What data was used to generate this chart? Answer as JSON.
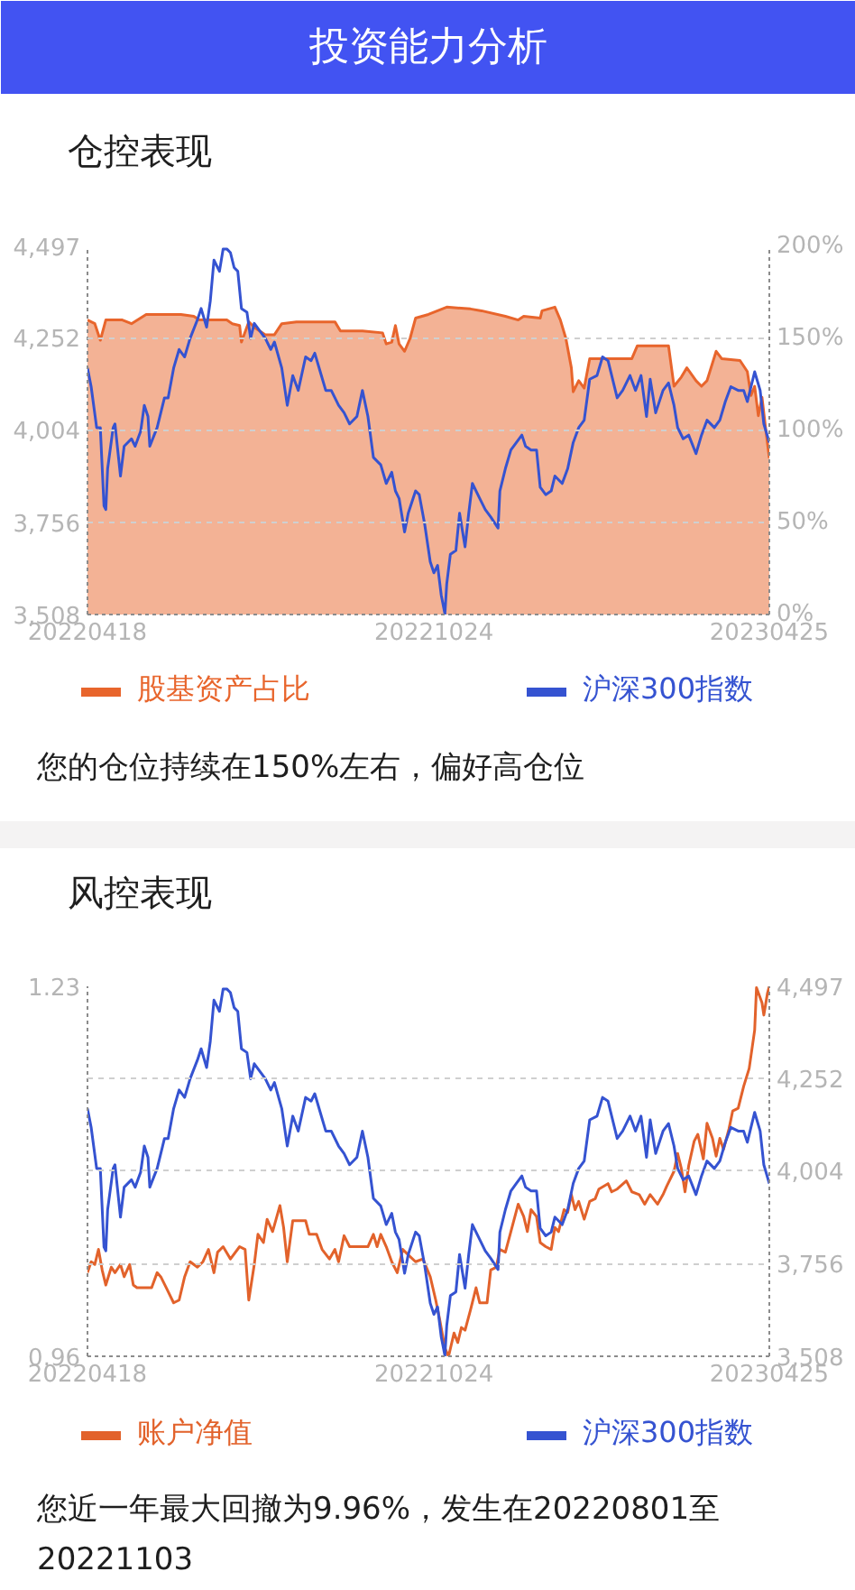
{
  "chart_data": [
    {
      "type": "other",
      "title": "投资能力分析"
    },
    {
      "type": "line",
      "title": "仓控表现",
      "annotations": [
        "您的仓位持续在150%左右，偏好高仓位"
      ],
      "xlim": [
        "2022-04-18",
        "2023-04-25"
      ],
      "xticks": [
        {
          "value": "2022-04-18",
          "label": "20220418"
        },
        {
          "value": "2022-10-24",
          "label": "20221024"
        },
        {
          "value": "2023-04-25",
          "label": "20230425"
        }
      ],
      "ylim": [
        3508,
        4497
      ],
      "yticks": [
        {
          "value": 3508,
          "label": "3,508"
        },
        {
          "value": 3756,
          "label": "3,756"
        },
        {
          "value": 4004,
          "label": "4,004"
        },
        {
          "value": 4252,
          "label": "4,252"
        },
        {
          "value": 4497,
          "label": "4,497"
        }
      ],
      "y2lim": [
        0,
        200
      ],
      "y2ticks": [
        {
          "value": 0,
          "label": "0%"
        },
        {
          "value": 50,
          "label": "50%"
        },
        {
          "value": 100,
          "label": "100%"
        },
        {
          "value": 150,
          "label": "150%"
        },
        {
          "value": 200,
          "label": "200%"
        }
      ],
      "grid": "y",
      "legend": "bottom",
      "series": [
        {
          "name": "股基资产占比",
          "type": "area",
          "axis": "y2",
          "color": "#e8652c",
          "x": [
            "2022-04-18",
            "2022-04-22",
            "2022-04-25",
            "2022-04-28",
            "2022-05-07",
            "2022-05-12",
            "2022-05-20",
            "2022-05-30",
            "2022-06-08",
            "2022-06-15",
            "2022-06-18",
            "2022-06-26",
            "2022-07-03",
            "2022-07-06",
            "2022-07-10",
            "2022-07-11",
            "2022-07-15",
            "2022-07-18",
            "2022-07-24",
            "2022-07-29",
            "2022-08-02",
            "2022-08-10",
            "2022-08-31",
            "2022-09-03",
            "2022-09-15",
            "2022-09-26",
            "2022-09-28",
            "2022-10-01",
            "2022-10-03",
            "2022-10-05",
            "2022-10-08",
            "2022-10-11",
            "2022-10-14",
            "2022-10-21",
            "2022-10-31",
            "2022-11-13",
            "2022-11-19",
            "2022-12-02",
            "2022-12-09",
            "2022-12-12",
            "2022-12-21",
            "2022-12-22",
            "2022-12-29",
            "2023-01-01",
            "2023-01-04",
            "2023-01-07",
            "2023-01-08",
            "2023-01-11",
            "2023-01-14",
            "2023-01-17",
            "2023-02-09",
            "2023-02-12",
            "2023-03-01",
            "2023-03-04",
            "2023-03-08",
            "2023-03-11",
            "2023-03-16",
            "2023-03-19",
            "2023-03-22",
            "2023-03-27",
            "2023-03-30",
            "2023-04-09",
            "2023-04-13",
            "2023-04-15",
            "2023-04-17",
            "2023-04-19",
            "2023-04-21",
            "2023-04-23",
            "2023-04-25"
          ],
          "values": [
            160,
            158,
            149,
            160,
            160,
            158,
            163,
            163,
            163,
            162,
            160,
            160,
            160,
            158,
            157,
            148,
            159,
            156,
            152,
            152,
            158,
            159,
            159,
            154,
            154,
            153,
            147,
            148,
            157,
            147,
            143,
            150,
            161,
            163,
            167,
            166,
            165,
            162,
            160,
            162,
            161,
            165,
            167,
            160,
            150,
            134,
            121,
            127,
            123,
            139,
            139,
            146,
            146,
            124,
            129,
            134,
            127,
            124,
            127,
            143,
            139,
            138,
            132,
            119,
            124,
            108,
            118,
            101,
            85
          ]
        },
        {
          "name": "沪深300指数",
          "color": "#3553d1",
          "x": [
            "2022-04-18",
            "2022-04-20",
            "2022-04-23",
            "2022-04-25",
            "2022-04-27",
            "2022-04-28",
            "2022-04-29",
            "2022-05-02",
            "2022-05-03",
            "2022-05-06",
            "2022-05-08",
            "2022-05-12",
            "2022-05-14",
            "2022-05-17",
            "2022-05-19",
            "2022-05-21",
            "2022-05-22",
            "2022-05-26",
            "2022-05-30",
            "2022-06-01",
            "2022-06-04",
            "2022-06-07",
            "2022-06-10",
            "2022-06-13",
            "2022-06-17",
            "2022-06-19",
            "2022-06-22",
            "2022-06-24",
            "2022-06-26",
            "2022-06-29",
            "2022-07-01",
            "2022-07-03",
            "2022-07-05",
            "2022-07-07",
            "2022-07-09",
            "2022-07-11",
            "2022-07-14",
            "2022-07-16",
            "2022-07-18",
            "2022-07-21",
            "2022-07-24",
            "2022-07-27",
            "2022-07-29",
            "2022-08-02",
            "2022-08-05",
            "2022-08-08",
            "2022-08-11",
            "2022-08-15",
            "2022-08-18",
            "2022-08-20",
            "2022-08-23",
            "2022-08-26",
            "2022-08-29",
            "2022-09-02",
            "2022-09-05",
            "2022-09-08",
            "2022-09-12",
            "2022-09-15",
            "2022-09-18",
            "2022-09-21",
            "2022-09-25",
            "2022-09-28",
            "2022-10-01",
            "2022-10-03",
            "2022-10-05",
            "2022-10-08",
            "2022-10-10",
            "2022-10-14",
            "2022-10-16",
            "2022-10-19",
            "2022-10-22",
            "2022-10-24",
            "2022-10-26",
            "2022-10-28",
            "2022-10-30",
            "2022-10-31",
            "2022-11-02",
            "2022-11-05",
            "2022-11-07",
            "2022-11-10",
            "2022-11-12",
            "2022-11-14",
            "2022-11-18",
            "2022-11-21",
            "2022-11-24",
            "2022-11-28",
            "2022-11-29",
            "2022-12-02",
            "2022-12-05",
            "2022-12-08",
            "2022-12-11",
            "2022-12-13",
            "2022-12-16",
            "2022-12-19",
            "2022-12-21",
            "2022-12-24",
            "2022-12-27",
            "2022-12-29",
            "2023-01-02",
            "2023-01-05",
            "2023-01-08",
            "2023-01-11",
            "2023-01-14",
            "2023-01-17",
            "2023-01-21",
            "2023-01-24",
            "2023-01-27",
            "2023-01-29",
            "2023-02-01",
            "2023-02-04",
            "2023-02-08",
            "2023-02-11",
            "2023-02-14",
            "2023-02-17",
            "2023-02-19",
            "2023-02-22",
            "2023-02-26",
            "2023-03-01",
            "2023-03-04",
            "2023-03-06",
            "2023-03-09",
            "2023-03-12",
            "2023-03-16",
            "2023-03-19",
            "2023-03-22",
            "2023-03-26",
            "2023-03-29",
            "2023-04-01",
            "2023-04-04",
            "2023-04-08",
            "2023-04-11",
            "2023-04-13",
            "2023-04-17",
            "2023-04-20",
            "2023-04-22",
            "2023-04-25"
          ],
          "values": [
            4170,
            4120,
            4010,
            4010,
            3800,
            3790,
            3900,
            4010,
            4020,
            3880,
            3960,
            3980,
            3960,
            4000,
            4070,
            4040,
            3960,
            4010,
            4090,
            4090,
            4170,
            4220,
            4200,
            4250,
            4300,
            4330,
            4280,
            4350,
            4460,
            4430,
            4490,
            4490,
            4480,
            4440,
            4430,
            4330,
            4320,
            4250,
            4290,
            4270,
            4250,
            4220,
            4240,
            4170,
            4070,
            4150,
            4110,
            4200,
            4190,
            4210,
            4160,
            4110,
            4110,
            4070,
            4050,
            4020,
            4040,
            4110,
            4040,
            3930,
            3910,
            3860,
            3890,
            3840,
            3820,
            3730,
            3780,
            3840,
            3830,
            3750,
            3650,
            3620,
            3640,
            3560,
            3510,
            3590,
            3670,
            3680,
            3780,
            3690,
            3780,
            3860,
            3820,
            3790,
            3770,
            3740,
            3840,
            3900,
            3950,
            3970,
            3990,
            3960,
            3950,
            3950,
            3850,
            3830,
            3840,
            3880,
            3860,
            3900,
            3970,
            4010,
            4030,
            4140,
            4150,
            4200,
            4190,
            4150,
            4090,
            4110,
            4150,
            4110,
            4150,
            4040,
            4140,
            4050,
            4110,
            4130,
            4070,
            4010,
            3980,
            3990,
            3940,
            3990,
            4030,
            4010,
            4030,
            4080,
            4120,
            4110,
            4110,
            4080,
            4160,
            4110,
            4020,
            3970
          ]
        }
      ]
    },
    {
      "type": "line",
      "title": "风控表现",
      "annotations": [
        "您近一年最大回撤为9.96%，发生在20220801至20221103"
      ],
      "xlim": [
        "2022-04-18",
        "2023-04-25"
      ],
      "xticks": [
        {
          "value": "2022-04-18",
          "label": "20220418"
        },
        {
          "value": "2022-10-24",
          "label": "20221024"
        },
        {
          "value": "2023-04-25",
          "label": "20230425"
        }
      ],
      "ylim": [
        0.96,
        1.23
      ],
      "yticks": [
        0.96,
        1.23
      ],
      "y2lim": [
        3508,
        4497
      ],
      "y2ticks": [
        {
          "value": 3508,
          "label": "3,508"
        },
        {
          "value": 3756,
          "label": "3,756"
        },
        {
          "value": 4004,
          "label": "4,004"
        },
        {
          "value": 4252,
          "label": "4,252"
        },
        {
          "value": 4497,
          "label": "4,497"
        }
      ],
      "grid": "y",
      "legend": "bottom",
      "series": [
        {
          "name": "账户净值",
          "color": "#e2622b",
          "x": [
            "2022-04-18",
            "2022-04-20",
            "2022-04-22",
            "2022-04-24",
            "2022-04-26",
            "2022-04-28",
            "2022-05-01",
            "2022-05-03",
            "2022-05-06",
            "2022-05-08",
            "2022-05-11",
            "2022-05-13",
            "2022-05-15",
            "2022-05-23",
            "2022-05-26",
            "2022-05-28",
            "2022-05-31",
            "2022-06-04",
            "2022-06-07",
            "2022-06-10",
            "2022-06-13",
            "2022-06-17",
            "2022-06-20",
            "2022-06-23",
            "2022-06-26",
            "2022-06-28",
            "2022-07-01",
            "2022-07-05",
            "2022-07-10",
            "2022-07-13",
            "2022-07-15",
            "2022-07-18",
            "2022-07-20",
            "2022-07-23",
            "2022-07-25",
            "2022-07-28",
            "2022-08-01",
            "2022-08-03",
            "2022-08-05",
            "2022-08-08",
            "2022-08-15",
            "2022-08-17",
            "2022-08-21",
            "2022-08-24",
            "2022-08-28",
            "2022-08-31",
            "2022-09-02",
            "2022-09-05",
            "2022-09-08",
            "2022-09-18",
            "2022-09-21",
            "2022-09-23",
            "2022-09-25",
            "2022-09-28",
            "2022-10-01",
            "2022-10-04",
            "2022-10-07",
            "2022-10-10",
            "2022-10-14",
            "2022-10-18",
            "2022-10-22",
            "2022-10-25",
            "2022-10-27",
            "2022-10-30",
            "2022-11-01",
            "2022-11-04",
            "2022-11-06",
            "2022-11-08",
            "2022-11-10",
            "2022-11-13",
            "2022-11-16",
            "2022-11-18",
            "2022-11-22",
            "2022-11-24",
            "2022-11-27",
            "2022-11-29",
            "2022-12-02",
            "2022-12-05",
            "2022-12-09",
            "2022-12-12",
            "2022-12-14",
            "2022-12-16",
            "2022-12-19",
            "2022-12-21",
            "2022-12-24",
            "2022-12-27",
            "2022-12-29",
            "2022-12-31",
            "2023-01-03",
            "2023-01-05",
            "2023-01-07",
            "2023-01-09",
            "2023-01-11",
            "2023-01-14",
            "2023-01-17",
            "2023-01-20",
            "2023-01-22",
            "2023-01-27",
            "2023-01-29",
            "2023-02-01",
            "2023-02-06",
            "2023-02-09",
            "2023-02-13",
            "2023-02-16",
            "2023-02-19",
            "2023-02-23",
            "2023-02-26",
            "2023-02-28",
            "2023-03-04",
            "2023-03-06",
            "2023-03-08",
            "2023-03-10",
            "2023-03-12",
            "2023-03-15",
            "2023-03-17",
            "2023-03-20",
            "2023-03-22",
            "2023-03-25",
            "2023-03-27",
            "2023-03-29",
            "2023-03-31",
            "2023-04-03",
            "2023-04-05",
            "2023-04-08",
            "2023-04-11",
            "2023-04-14",
            "2023-04-17",
            "2023-04-18",
            "2023-04-21",
            "2023-04-22",
            "2023-04-24",
            "2023-04-25"
          ],
          "values": [
            1.021,
            1.029,
            1.027,
            1.038,
            1.023,
            1.012,
            1.025,
            1.021,
            1.027,
            1.018,
            1.027,
            1.012,
            1.01,
            1.01,
            1.021,
            1.018,
            1.01,
            0.999,
            1.001,
            1.018,
            1.029,
            1.025,
            1.029,
            1.038,
            1.021,
            1.036,
            1.04,
            1.031,
            1.04,
            1.038,
            1.001,
            1.027,
            1.049,
            1.043,
            1.06,
            1.051,
            1.07,
            1.054,
            1.029,
            1.059,
            1.059,
            1.049,
            1.049,
            1.038,
            1.031,
            1.038,
            1.029,
            1.048,
            1.04,
            1.04,
            1.049,
            1.04,
            1.049,
            1.04,
            1.029,
            1.021,
            1.038,
            1.034,
            1.029,
            1.031,
            1.018,
            1.001,
            0.988,
            0.966,
            0.96,
            0.977,
            0.97,
            0.981,
            0.979,
            0.994,
            1.01,
            0.999,
            0.999,
            1.023,
            1.025,
            1.038,
            1.036,
            1.051,
            1.071,
            1.062,
            1.051,
            1.067,
            1.062,
            1.043,
            1.04,
            1.038,
            1.054,
            1.051,
            1.067,
            1.065,
            1.078,
            1.067,
            1.073,
            1.06,
            1.073,
            1.075,
            1.082,
            1.086,
            1.08,
            1.082,
            1.088,
            1.08,
            1.078,
            1.071,
            1.078,
            1.071,
            1.078,
            1.084,
            1.095,
            1.108,
            1.097,
            1.08,
            1.099,
            1.117,
            1.122,
            1.104,
            1.13,
            1.119,
            1.106,
            1.119,
            1.111,
            1.126,
            1.139,
            1.141,
            1.157,
            1.17,
            1.198,
            1.229,
            1.218,
            1.209,
            1.225,
            1.23
          ]
        },
        {
          "name": "沪深300指数",
          "axis": "y2",
          "color": "#3553d1",
          "x": [
            "2022-04-18",
            "2022-04-20",
            "2022-04-23",
            "2022-04-25",
            "2022-04-27",
            "2022-04-28",
            "2022-04-29",
            "2022-05-02",
            "2022-05-03",
            "2022-05-06",
            "2022-05-08",
            "2022-05-12",
            "2022-05-14",
            "2022-05-17",
            "2022-05-19",
            "2022-05-21",
            "2022-05-22",
            "2022-05-26",
            "2022-05-30",
            "2022-06-01",
            "2022-06-04",
            "2022-06-07",
            "2022-06-10",
            "2022-06-13",
            "2022-06-17",
            "2022-06-19",
            "2022-06-22",
            "2022-06-24",
            "2022-06-26",
            "2022-06-29",
            "2022-07-01",
            "2022-07-03",
            "2022-07-05",
            "2022-07-07",
            "2022-07-09",
            "2022-07-11",
            "2022-07-14",
            "2022-07-16",
            "2022-07-18",
            "2022-07-21",
            "2022-07-24",
            "2022-07-27",
            "2022-07-29",
            "2022-08-02",
            "2022-08-05",
            "2022-08-08",
            "2022-08-11",
            "2022-08-15",
            "2022-08-18",
            "2022-08-20",
            "2022-08-23",
            "2022-08-26",
            "2022-08-29",
            "2022-09-02",
            "2022-09-05",
            "2022-09-08",
            "2022-09-12",
            "2022-09-15",
            "2022-09-18",
            "2022-09-21",
            "2022-09-25",
            "2022-09-28",
            "2022-10-01",
            "2022-10-03",
            "2022-10-05",
            "2022-10-08",
            "2022-10-10",
            "2022-10-14",
            "2022-10-16",
            "2022-10-19",
            "2022-10-22",
            "2022-10-24",
            "2022-10-26",
            "2022-10-28",
            "2022-10-30",
            "2022-10-31",
            "2022-11-02",
            "2022-11-05",
            "2022-11-07",
            "2022-11-10",
            "2022-11-12",
            "2022-11-14",
            "2022-11-18",
            "2022-11-21",
            "2022-11-24",
            "2022-11-28",
            "2022-11-29",
            "2022-12-02",
            "2022-12-05",
            "2022-12-08",
            "2022-12-11",
            "2022-12-13",
            "2022-12-16",
            "2022-12-19",
            "2022-12-21",
            "2022-12-24",
            "2022-12-27",
            "2022-12-29",
            "2023-01-02",
            "2023-01-05",
            "2023-01-08",
            "2023-01-11",
            "2023-01-14",
            "2023-01-17",
            "2023-01-21",
            "2023-01-24",
            "2023-01-27",
            "2023-01-29",
            "2023-02-01",
            "2023-02-04",
            "2023-02-08",
            "2023-02-11",
            "2023-02-14",
            "2023-02-17",
            "2023-02-19",
            "2023-02-22",
            "2023-02-26",
            "2023-03-01",
            "2023-03-04",
            "2023-03-06",
            "2023-03-09",
            "2023-03-12",
            "2023-03-16",
            "2023-03-19",
            "2023-03-22",
            "2023-03-26",
            "2023-03-29",
            "2023-04-01",
            "2023-04-04",
            "2023-04-08",
            "2023-04-11",
            "2023-04-13",
            "2023-04-17",
            "2023-04-20",
            "2023-04-22",
            "2023-04-25"
          ],
          "values": [
            4170,
            4120,
            4010,
            4010,
            3800,
            3790,
            3900,
            4010,
            4020,
            3880,
            3960,
            3980,
            3960,
            4000,
            4070,
            4040,
            3960,
            4010,
            4090,
            4090,
            4170,
            4220,
            4200,
            4250,
            4300,
            4330,
            4280,
            4350,
            4460,
            4430,
            4490,
            4490,
            4480,
            4440,
            4430,
            4330,
            4320,
            4250,
            4290,
            4270,
            4250,
            4220,
            4240,
            4170,
            4070,
            4150,
            4110,
            4200,
            4190,
            4210,
            4160,
            4110,
            4110,
            4070,
            4050,
            4020,
            4040,
            4110,
            4040,
            3930,
            3910,
            3860,
            3890,
            3840,
            3820,
            3730,
            3780,
            3840,
            3830,
            3750,
            3650,
            3620,
            3640,
            3560,
            3510,
            3590,
            3670,
            3680,
            3780,
            3690,
            3780,
            3860,
            3820,
            3790,
            3770,
            3740,
            3840,
            3900,
            3950,
            3970,
            3990,
            3960,
            3950,
            3950,
            3850,
            3830,
            3840,
            3880,
            3860,
            3900,
            3970,
            4010,
            4030,
            4140,
            4150,
            4200,
            4190,
            4150,
            4090,
            4110,
            4150,
            4110,
            4150,
            4040,
            4140,
            4050,
            4110,
            4130,
            4070,
            4010,
            3980,
            3990,
            3940,
            3990,
            4030,
            4010,
            4030,
            4080,
            4120,
            4110,
            4110,
            4080,
            4160,
            4110,
            4020,
            3970
          ]
        }
      ]
    }
  ]
}
